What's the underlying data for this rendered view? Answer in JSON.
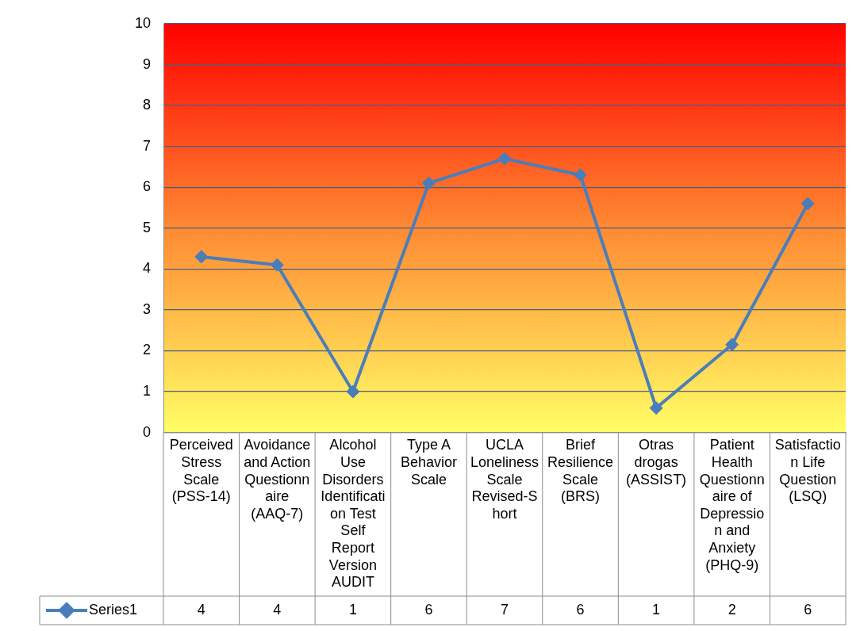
{
  "chart_data": {
    "type": "line",
    "categories": [
      "Perceived Stress Scale (PSS-14)",
      "Avoidance and Action Questionnaire (AAQ-7)",
      "Alcohol Use Disorders Identification Test Self Report Version AUDIT",
      "Type A Behavior Scale",
      "UCLA Loneliness Scale Revised-Short",
      "Brief Resilience Scale (BRS)",
      "Otras drogas (ASSIST)",
      "Patient Health Questionnaire of Depression and Anxiety (PHQ-9)",
      "Satisfaction Life Question (LSQ)"
    ],
    "series": [
      {
        "name": "Series1",
        "color": "#4a7ebb",
        "values": [
          4.3,
          4.1,
          1.0,
          6.1,
          6.7,
          6.3,
          0.6,
          2.15,
          5.6
        ],
        "value_labels": [
          "4",
          "4",
          "1",
          "6",
          "7",
          "6",
          "1",
          "2",
          "6"
        ]
      }
    ],
    "ylim": [
      0,
      10
    ],
    "yticks": [
      0,
      1,
      2,
      3,
      4,
      5,
      6,
      7,
      8,
      9,
      10
    ],
    "grid": "y",
    "legend": "bottom",
    "marker": "diamond"
  }
}
